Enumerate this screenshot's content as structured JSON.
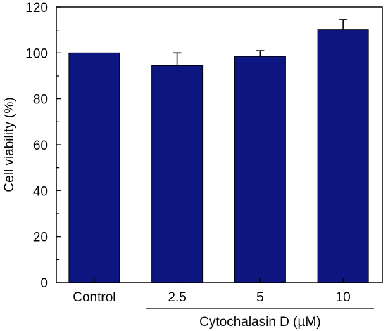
{
  "chart_data": {
    "type": "bar",
    "title": "",
    "ylabel": "Cell viability (%)",
    "xlabel": "",
    "group_label": "Cytochalasin D (µM)",
    "group_categories": [
      "2.5",
      "5",
      "10"
    ],
    "categories": [
      "Control",
      "2.5",
      "5",
      "10"
    ],
    "values": [
      100,
      94.5,
      98.5,
      110.3
    ],
    "error_plus": [
      0,
      5.5,
      2.5,
      4.2
    ],
    "yticks": [
      "0",
      "20",
      "40",
      "60",
      "80",
      "100",
      "120"
    ],
    "ylim": [
      0,
      120
    ],
    "bar_color": "#0d1680",
    "grid": false
  }
}
